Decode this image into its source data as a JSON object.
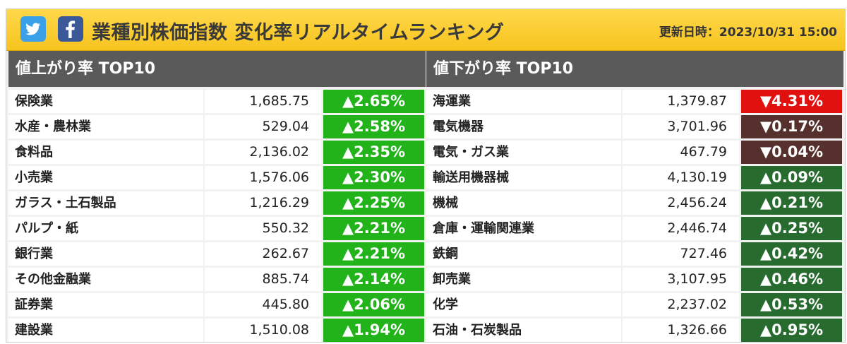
{
  "header": {
    "title": "業種別株価指数 変化率リアルタイムランキング",
    "updated": "更新日時：2023/10/31 15:00",
    "twitter_icon": "twitter-icon",
    "facebook_icon": "facebook-icon"
  },
  "colors": {
    "up_bright": "#22b21a",
    "up_dark": "#286b2f",
    "down_red": "#e0110f",
    "down_dark": "#56302c",
    "header_gold": "#f7c41f",
    "panel_head": "#5a5a5a"
  },
  "gainers": {
    "heading": "値上がり率 TOP10",
    "rows": [
      {
        "name": "保険業",
        "value": "1,685.75",
        "change": "▲2.65%",
        "tone": "up_bright"
      },
      {
        "name": "水産・農林業",
        "value": "529.04",
        "change": "▲2.58%",
        "tone": "up_bright"
      },
      {
        "name": "食料品",
        "value": "2,136.02",
        "change": "▲2.35%",
        "tone": "up_bright"
      },
      {
        "name": "小売業",
        "value": "1,576.06",
        "change": "▲2.30%",
        "tone": "up_bright"
      },
      {
        "name": "ガラス・土石製品",
        "value": "1,216.29",
        "change": "▲2.25%",
        "tone": "up_bright"
      },
      {
        "name": "パルプ・紙",
        "value": "550.32",
        "change": "▲2.21%",
        "tone": "up_bright"
      },
      {
        "name": "銀行業",
        "value": "262.67",
        "change": "▲2.21%",
        "tone": "up_bright"
      },
      {
        "name": "その他金融業",
        "value": "885.74",
        "change": "▲2.14%",
        "tone": "up_bright"
      },
      {
        "name": "証券業",
        "value": "445.80",
        "change": "▲2.06%",
        "tone": "up_bright"
      },
      {
        "name": "建設業",
        "value": "1,510.08",
        "change": "▲1.94%",
        "tone": "up_bright"
      }
    ]
  },
  "losers": {
    "heading": "値下がり率 TOP10",
    "rows": [
      {
        "name": "海運業",
        "value": "1,379.87",
        "change": "▼4.31%",
        "tone": "down_red"
      },
      {
        "name": "電気機器",
        "value": "3,701.96",
        "change": "▼0.17%",
        "tone": "down_dark"
      },
      {
        "name": "電気・ガス業",
        "value": "467.79",
        "change": "▼0.04%",
        "tone": "down_dark"
      },
      {
        "name": "輸送用機器械",
        "value": "4,130.19",
        "change": "▲0.09%",
        "tone": "up_dark"
      },
      {
        "name": "機械",
        "value": "2,456.24",
        "change": "▲0.21%",
        "tone": "up_dark"
      },
      {
        "name": "倉庫・運輸関連業",
        "value": "2,446.74",
        "change": "▲0.25%",
        "tone": "up_dark"
      },
      {
        "name": "鉄鋼",
        "value": "727.46",
        "change": "▲0.42%",
        "tone": "up_dark"
      },
      {
        "name": "卸売業",
        "value": "3,107.95",
        "change": "▲0.46%",
        "tone": "up_dark"
      },
      {
        "name": "化学",
        "value": "2,237.02",
        "change": "▲0.53%",
        "tone": "up_dark"
      },
      {
        "name": "石油・石炭製品",
        "value": "1,326.66",
        "change": "▲0.95%",
        "tone": "up_dark"
      }
    ]
  }
}
